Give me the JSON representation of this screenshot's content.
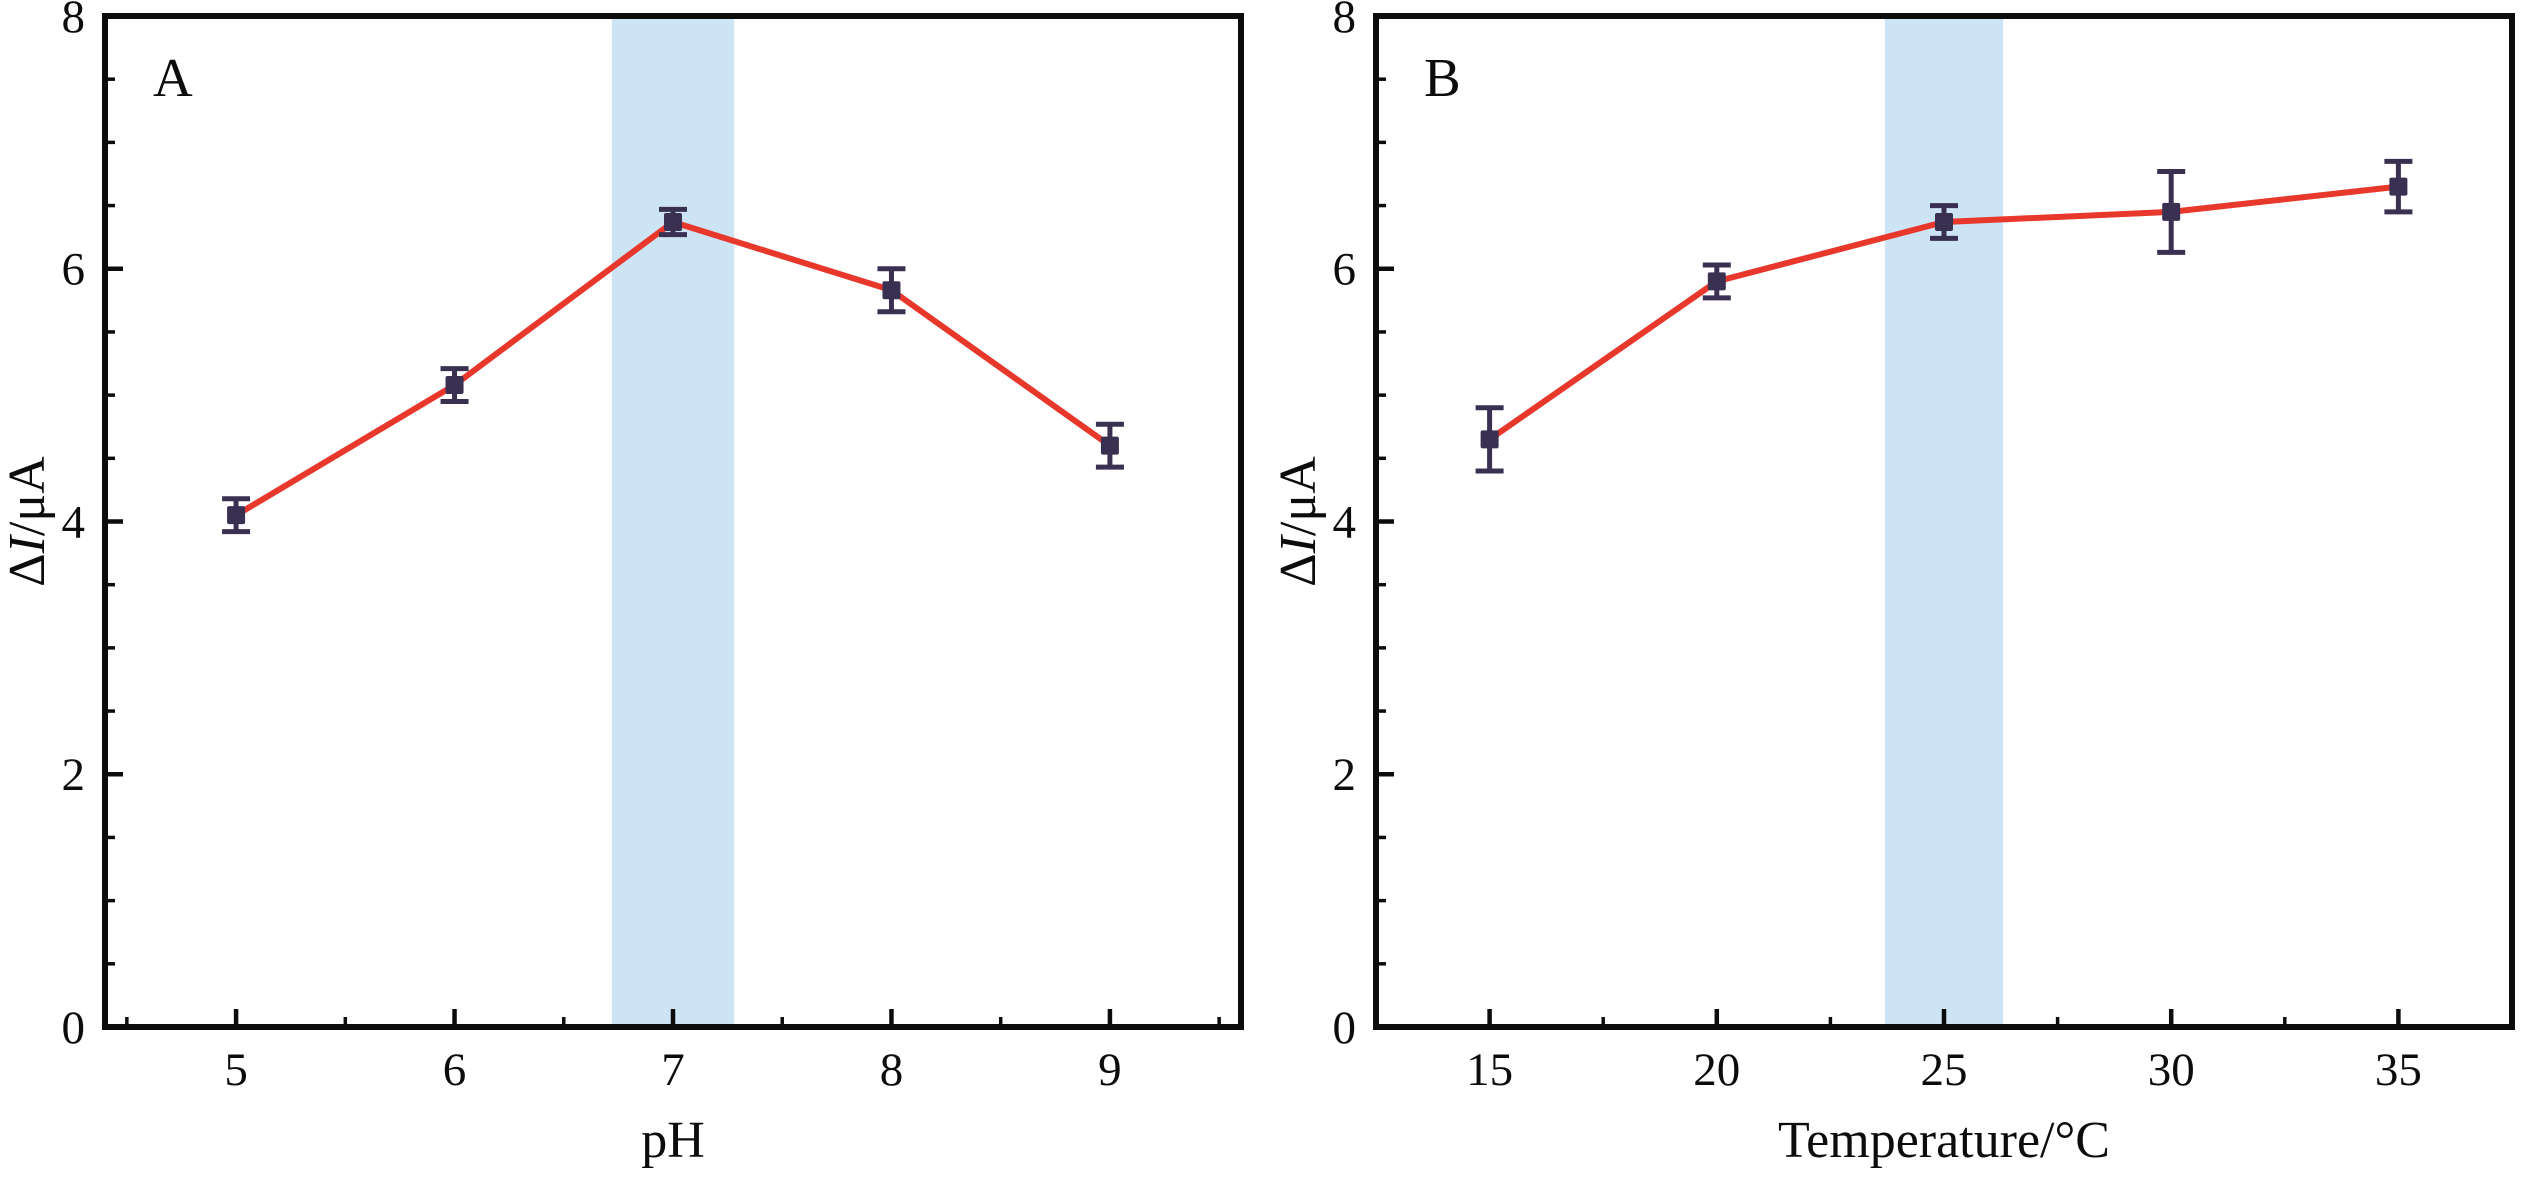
{
  "figure": {
    "background": "#ffffff",
    "description": "Two-panel line chart figure with error bars"
  },
  "chart_data": [
    {
      "type": "line",
      "panel_label": "A",
      "x": [
        5,
        6,
        7,
        8,
        9
      ],
      "y": [
        4.05,
        5.08,
        6.37,
        5.83,
        4.6
      ],
      "yerr": [
        0.13,
        0.13,
        0.1,
        0.17,
        0.17
      ],
      "title": "",
      "xlabel": "pH",
      "ylabel": "ΔI/μA",
      "ylabel_segments": [
        {
          "text": "Δ",
          "italic": false
        },
        {
          "text": "I",
          "italic": true
        },
        {
          "text": "/μA",
          "italic": false
        }
      ],
      "xlim": [
        4.4,
        9.6
      ],
      "ylim": [
        0,
        8
      ],
      "xticks": [
        5,
        6,
        7,
        8,
        9
      ],
      "yticks": [
        0,
        2,
        4,
        6,
        8
      ],
      "x_minor_step": 0.5,
      "y_minor_step": 0.5,
      "grid": false,
      "highlight_band": {
        "x0": 6.72,
        "x1": 7.28,
        "color": "#cde4f5"
      },
      "line_color": "#e8382c",
      "marker_color": "#3a3052",
      "axis_color": "#0c0c0c"
    },
    {
      "type": "line",
      "panel_label": "B",
      "x": [
        15,
        20,
        25,
        30,
        35
      ],
      "y": [
        4.65,
        5.9,
        6.37,
        6.45,
        6.65
      ],
      "yerr": [
        0.25,
        0.13,
        0.13,
        0.32,
        0.2
      ],
      "title": "",
      "xlabel": "Temperature/°C",
      "ylabel": "ΔI/μA",
      "ylabel_segments": [
        {
          "text": "Δ",
          "italic": false
        },
        {
          "text": "I",
          "italic": true
        },
        {
          "text": "/μA",
          "italic": false
        }
      ],
      "xlim": [
        12.5,
        37.5
      ],
      "ylim": [
        0,
        8
      ],
      "xticks": [
        15,
        20,
        25,
        30,
        35
      ],
      "yticks": [
        0,
        2,
        4,
        6,
        8
      ],
      "x_minor_step": 2.5,
      "y_minor_step": 0.5,
      "grid": false,
      "highlight_band": {
        "x0": 23.7,
        "x1": 26.3,
        "color": "#cde4f5"
      },
      "line_color": "#e8382c",
      "marker_color": "#3a3052",
      "axis_color": "#0c0c0c"
    }
  ]
}
